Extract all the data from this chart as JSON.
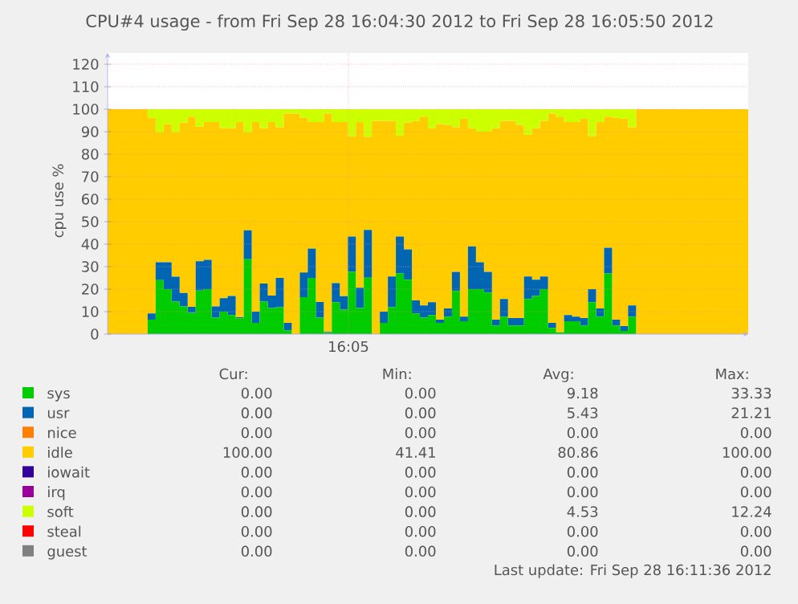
{
  "chart_data": {
    "type": "area",
    "title": "CPU#4 usage - from Fri Sep 28 16:04:30 2012 to Fri Sep 28 16:05:50 2012",
    "ylabel": "cpu use %",
    "stacked": true,
    "grid": "y",
    "legend": "bottom",
    "ylim": [
      0,
      125
    ],
    "yticks": [
      {
        "value": 0,
        "label": "0"
      },
      {
        "value": 10,
        "label": "10"
      },
      {
        "value": 20,
        "label": "20"
      },
      {
        "value": 30,
        "label": "30"
      },
      {
        "value": 40,
        "label": "40"
      },
      {
        "value": 50,
        "label": "50"
      },
      {
        "value": 60,
        "label": "60"
      },
      {
        "value": 70,
        "label": "70"
      },
      {
        "value": 80,
        "label": "80"
      },
      {
        "value": 90,
        "label": "90"
      },
      {
        "value": 100,
        "label": "100"
      },
      {
        "value": 110,
        "label": "110"
      },
      {
        "value": 120,
        "label": "120"
      }
    ],
    "categories": [
      null,
      null,
      null,
      null,
      null,
      null,
      null,
      null,
      null,
      null,
      null,
      null,
      null,
      null,
      null,
      null,
      null,
      null,
      null,
      null,
      null,
      null,
      null,
      null,
      null,
      null,
      null,
      null,
      null,
      null,
      null,
      null,
      null,
      null,
      null,
      null,
      null,
      null,
      null,
      null,
      null,
      null,
      null,
      null,
      null,
      null,
      null,
      null,
      null,
      null,
      null,
      null,
      null,
      null,
      null,
      null,
      null,
      null,
      null,
      null,
      null,
      null,
      null,
      null,
      null,
      null,
      null,
      null,
      null,
      null,
      null,
      null,
      null,
      null,
      null,
      null,
      null,
      null,
      null,
      null,
      null
    ],
    "series": [
      {
        "name": "sys",
        "color": "#00cc00",
        "values": [
          0,
          0,
          0,
          0,
          0,
          6.4,
          24,
          20,
          14.5,
          12.3,
          9.5,
          19.4,
          20,
          7.3,
          10,
          8.5,
          7,
          33.3,
          5,
          14.5,
          11.6,
          12,
          1.7,
          0,
          16.4,
          25,
          7.3,
          0.5,
          14.2,
          10.9,
          27.7,
          11.6,
          25.1,
          0,
          5,
          12,
          27,
          24.2,
          9.2,
          7.3,
          8.5,
          5,
          7.8,
          19.2,
          5.7,
          20,
          20,
          18.5,
          3.8,
          7.8,
          3.8,
          3.8,
          15.6,
          17,
          20,
          2.8,
          0.8,
          5.7,
          5.7,
          3.8,
          14.2,
          7.8,
          27,
          3.8,
          1.4,
          7.8,
          0,
          0,
          0,
          0,
          0,
          0,
          0,
          0,
          0,
          0,
          0,
          0,
          0,
          0,
          0
        ]
      },
      {
        "name": "usr",
        "color": "#0066b3",
        "values": [
          0,
          0,
          0,
          0,
          0,
          2.8,
          8,
          12,
          11,
          6,
          2.6,
          13,
          13,
          5,
          6,
          8.5,
          0.5,
          12.9,
          5,
          8,
          5.5,
          13,
          3.3,
          0,
          11,
          13,
          7,
          0.5,
          8.5,
          6,
          15.7,
          9,
          21.2,
          0,
          5,
          13.6,
          16.4,
          13.5,
          5.8,
          5.5,
          5.7,
          1.4,
          3.6,
          8.5,
          2.1,
          19,
          12,
          9.2,
          2.6,
          7.8,
          3.3,
          3.3,
          10,
          7.2,
          5.6,
          2.2,
          0,
          2.8,
          2.1,
          3.3,
          5.8,
          3.6,
          11.4,
          2.6,
          2.2,
          5,
          0,
          0,
          0,
          0,
          0,
          0,
          0,
          0,
          0,
          0,
          0,
          0,
          0,
          0,
          0
        ]
      },
      {
        "name": "nice",
        "color": "#ff8000",
        "values": [
          null,
          null,
          null,
          null,
          null,
          null,
          null,
          null,
          null,
          null,
          null,
          null,
          null,
          null,
          null,
          null,
          null,
          null,
          null,
          null,
          null,
          null,
          null,
          null,
          null,
          null,
          null,
          null,
          null,
          null,
          null,
          null,
          null,
          null,
          null,
          null,
          null,
          null,
          null,
          null,
          null,
          null,
          null,
          null,
          null,
          null,
          null,
          null,
          null,
          null,
          null,
          null,
          null,
          null,
          null,
          null,
          null,
          null,
          null,
          null,
          null,
          null,
          null,
          null,
          null,
          null,
          null,
          null,
          null,
          null,
          null,
          null,
          null,
          null,
          null,
          null,
          null,
          null,
          null,
          null,
          null
        ]
      },
      {
        "name": "idle",
        "color": "#ffcc00",
        "values": [
          100,
          100,
          100,
          100,
          100,
          87,
          57.6,
          61.4,
          64.1,
          75.7,
          84.6,
          59.8,
          61.3,
          82,
          75.5,
          74.5,
          86.8,
          43.4,
          84.3,
          69,
          77.2,
          67,
          93,
          98,
          68.8,
          56.3,
          80,
          97,
          71.6,
          77.4,
          44.6,
          73.7,
          41.5,
          94.8,
          84.8,
          69.2,
          44.8,
          56.3,
          79.8,
          83.9,
          77.3,
          87,
          81.6,
          64.3,
          87.9,
          52.5,
          58,
          62.3,
          85.1,
          79.2,
          87.7,
          85.9,
          63,
          67.3,
          69.2,
          93,
          95.9,
          85.8,
          86.5,
          88.6,
          68,
          82.9,
          58.3,
          89.8,
          92.1,
          79.2,
          100,
          100,
          100,
          100,
          100,
          100,
          100,
          100,
          100,
          100,
          100,
          100,
          100,
          100,
          100
        ]
      },
      {
        "name": "iowait",
        "color": "#330099",
        "values": [
          null,
          null,
          null,
          null,
          null,
          null,
          null,
          null,
          null,
          null,
          null,
          null,
          null,
          null,
          null,
          null,
          null,
          null,
          null,
          null,
          null,
          null,
          null,
          null,
          null,
          null,
          null,
          null,
          null,
          null,
          null,
          null,
          null,
          null,
          null,
          null,
          null,
          null,
          null,
          null,
          null,
          null,
          null,
          null,
          null,
          null,
          null,
          null,
          null,
          null,
          null,
          null,
          null,
          null,
          null,
          null,
          null,
          null,
          null,
          null,
          null,
          null,
          null,
          null,
          null,
          null,
          null,
          null,
          null,
          null,
          null,
          null,
          null,
          null,
          null,
          null,
          null,
          null,
          null,
          null,
          null
        ]
      },
      {
        "name": "irq",
        "color": "#990099",
        "values": [
          null,
          null,
          null,
          null,
          null,
          null,
          null,
          null,
          null,
          null,
          null,
          null,
          null,
          null,
          null,
          null,
          null,
          null,
          null,
          null,
          null,
          null,
          null,
          null,
          null,
          null,
          null,
          null,
          null,
          null,
          null,
          null,
          null,
          null,
          null,
          null,
          null,
          null,
          null,
          null,
          null,
          null,
          null,
          null,
          null,
          null,
          null,
          null,
          null,
          null,
          null,
          null,
          null,
          null,
          null,
          null,
          null,
          null,
          null,
          null,
          null,
          null,
          null,
          null,
          null,
          null,
          null,
          null,
          null,
          null,
          null,
          null,
          null,
          null,
          null,
          null,
          null,
          null,
          null,
          null,
          null
        ]
      },
      {
        "name": "soft",
        "color": "#ccff00",
        "values": [
          0,
          0,
          0,
          0,
          0,
          3.8,
          10.4,
          6.6,
          10.4,
          6,
          3.3,
          7.8,
          5.7,
          5.7,
          8.5,
          8.5,
          5.7,
          10.4,
          5.7,
          8.5,
          5.7,
          8,
          2,
          2,
          3.8,
          5.7,
          5.7,
          2,
          5.7,
          5.7,
          12,
          5.7,
          12.2,
          5.2,
          5.2,
          5.2,
          11.8,
          6,
          5.2,
          3.3,
          8.5,
          6.6,
          7,
          8,
          4.3,
          8.5,
          10,
          10,
          8.5,
          5.2,
          5.2,
          7,
          11.4,
          8.5,
          5.2,
          2,
          3.3,
          5.7,
          5.7,
          4.3,
          12,
          5.7,
          3.3,
          3.8,
          4.3,
          8,
          0,
          0,
          0,
          0,
          0,
          0,
          0,
          0,
          0,
          0,
          0,
          0,
          0,
          0,
          0
        ]
      },
      {
        "name": "steal",
        "color": "#ff0000",
        "values": [
          null,
          null,
          null,
          null,
          null,
          null,
          null,
          null,
          null,
          null,
          null,
          null,
          null,
          null,
          null,
          null,
          null,
          null,
          null,
          null,
          null,
          null,
          null,
          null,
          null,
          null,
          null,
          null,
          null,
          null,
          null,
          null,
          null,
          null,
          null,
          null,
          null,
          null,
          null,
          null,
          null,
          null,
          null,
          null,
          null,
          null,
          null,
          null,
          null,
          null,
          null,
          null,
          null,
          null,
          null,
          null,
          null,
          null,
          null,
          null,
          null,
          null,
          null,
          null,
          null,
          null,
          null,
          null,
          null,
          null,
          null,
          null,
          null,
          null,
          null,
          null,
          null,
          null,
          null,
          null,
          null
        ]
      },
      {
        "name": "guest",
        "color": "#808080",
        "values": [
          null,
          null,
          null,
          null,
          null,
          null,
          null,
          null,
          null,
          null,
          null,
          null,
          null,
          null,
          null,
          null,
          null,
          null,
          null,
          null,
          null,
          null,
          null,
          null,
          null,
          null,
          null,
          null,
          null,
          null,
          null,
          null,
          null,
          null,
          null,
          null,
          null,
          null,
          null,
          null,
          null,
          null,
          null,
          null,
          null,
          null,
          null,
          null,
          null,
          null,
          null,
          null,
          null,
          null,
          null,
          null,
          null,
          null,
          null,
          null,
          null,
          null,
          null,
          null,
          null,
          null,
          null,
          null,
          null,
          null,
          null,
          null,
          null,
          null,
          null,
          null,
          null,
          null,
          null,
          null,
          null
        ]
      }
    ],
    "annotations": [
      "16:05",
      "Cur:",
      "Min:",
      "Avg:",
      "Max:",
      "0.00",
      "0.00",
      "9.18",
      "33.33",
      "0.00",
      "0.00",
      "5.43",
      "21.21",
      "0.00",
      "0.00",
      "0.00",
      "0.00",
      "100.00",
      "41.41",
      "80.86",
      "100.00",
      "0.00",
      "0.00",
      "0.00",
      "0.00",
      "0.00",
      "0.00",
      "0.00",
      "0.00",
      "0.00",
      "0.00",
      "4.53",
      "12.24",
      "0.00",
      "0.00",
      "0.00",
      "0.00",
      "0.00",
      "0.00",
      "0.00",
      "0.00",
      "Last update: Fri Sep 28 16:11:36 2012"
    ]
  }
}
